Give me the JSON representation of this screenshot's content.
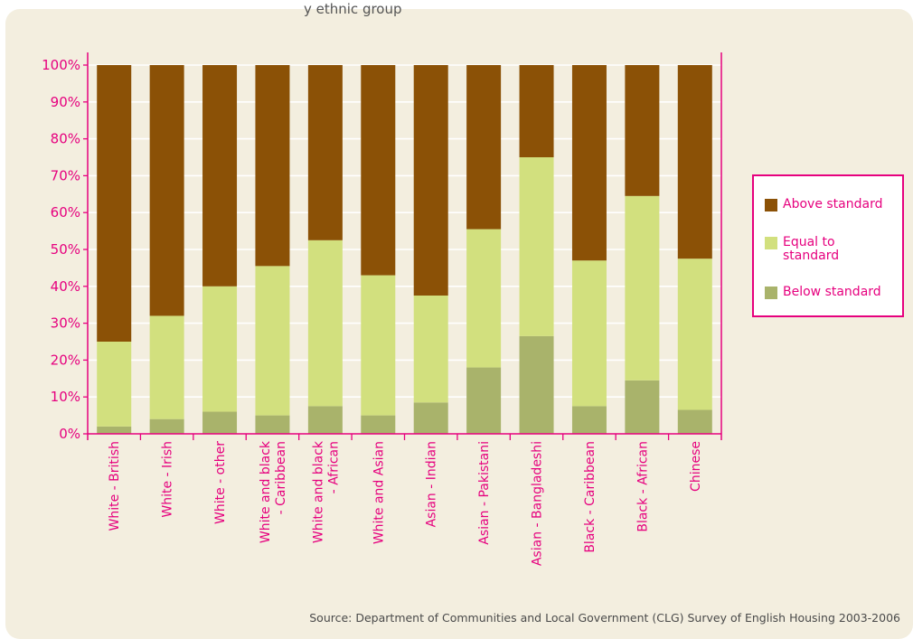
{
  "title_fragment": "y ethnic group",
  "source": "Source: Department of Communities and Local Government (CLG) Survey of English Housing 2003-2006",
  "colors": {
    "above": "#8b5106",
    "equal": "#d2e07e",
    "below": "#a9b36b",
    "accent": "#e6007e",
    "panel": "#f3eedf"
  },
  "chart_data": {
    "type": "bar",
    "stacked": true,
    "percent": true,
    "categories": [
      "White - British",
      "White - Irish",
      "White - other",
      "White and black - Caribbean",
      "White and black - African",
      "White and Asian",
      "Asian - Indian",
      "Asian - Pakistani",
      "Asian - Bangladeshi",
      "Black - Caribbean",
      "Black - African",
      "Chinese"
    ],
    "category_lines": [
      [
        "White - British"
      ],
      [
        "White - Irish"
      ],
      [
        "White - other"
      ],
      [
        "White and black",
        "- Caribbean"
      ],
      [
        "White and black",
        "- African"
      ],
      [
        "White and Asian"
      ],
      [
        "Asian - Indian"
      ],
      [
        "Asian - Pakistani"
      ],
      [
        "Asian - Bangladeshi"
      ],
      [
        "Black - Caribbean"
      ],
      [
        "Black - African"
      ],
      [
        "Chinese"
      ]
    ],
    "series": [
      {
        "name": "Below standard",
        "color": "#a9b36b",
        "values": [
          2,
          4,
          6,
          5,
          7.5,
          5,
          8.5,
          18,
          26.5,
          7.5,
          14.5,
          6.5
        ]
      },
      {
        "name": "Equal to standard",
        "color": "#d2e07e",
        "values": [
          23,
          28,
          34,
          40.5,
          45,
          38,
          29,
          37.5,
          48.5,
          39.5,
          50,
          41
        ]
      },
      {
        "name": "Above standard",
        "color": "#8b5106",
        "values": [
          75,
          68,
          60,
          54.5,
          47.5,
          57,
          62.5,
          44.5,
          25,
          53,
          35.5,
          52.5
        ]
      }
    ],
    "y_ticks": [
      "0%",
      "10%",
      "20%",
      "30%",
      "40%",
      "50%",
      "60%",
      "70%",
      "80%",
      "90%",
      "100%"
    ],
    "ylim": [
      0,
      100
    ],
    "legend_position": "right",
    "legend": [
      {
        "label": "Above standard",
        "color": "#8b5106"
      },
      {
        "label": "Equal to standard",
        "color": "#d2e07e"
      },
      {
        "label": "Below standard",
        "color": "#a9b36b"
      }
    ]
  }
}
